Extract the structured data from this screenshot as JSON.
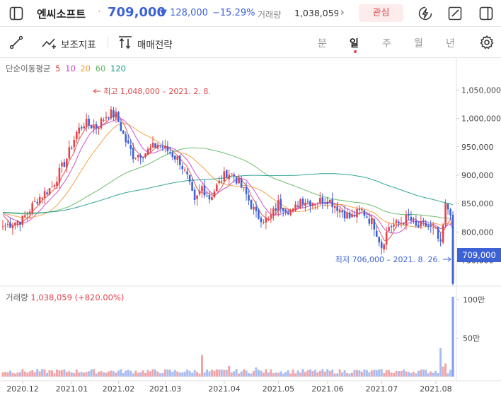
{
  "header": {
    "stock_name": "엔씨소프트",
    "price": "709,000",
    "change": "▼ 128,000",
    "change_pct": "−15.29%",
    "volume_label": "거래량",
    "volume_value": "1,038,059",
    "favorite_label": "관심"
  },
  "toolbar": {
    "indicator_label": "보조지표",
    "trade_strategy_label": "매매전략",
    "periods": [
      "분",
      "일",
      "주",
      "월",
      "년"
    ],
    "active_period": "일"
  },
  "colors": {
    "up": "#e0454a",
    "down": "#3d62d6",
    "ma5": "#e0454a",
    "ma10": "#c940c9",
    "ma20": "#f29a37",
    "ma60": "#5cb85c",
    "ma120": "#1a9a8a"
  },
  "chart_data": {
    "type": "candlestick",
    "ma_legend": {
      "label": "단순이동평균",
      "periods": [
        "5",
        "10",
        "20",
        "60",
        "120"
      ]
    },
    "x_tick_labels": [
      "2020.12",
      "2021.01",
      "2021.02",
      "2021.03",
      "2021.04",
      "2021.05",
      "2021.06",
      "2021.07",
      "2021.08"
    ],
    "x_tick_days": [
      0,
      20,
      39,
      58,
      82,
      104,
      124,
      146,
      168
    ],
    "y_ticks": [
      750000,
      800000,
      850000,
      900000,
      950000,
      1000000,
      1050000
    ],
    "y_tick_labels": [
      "750,000",
      "800,000",
      "850,000",
      "900,000",
      "950,000",
      "1,000,000",
      "1,050,000"
    ],
    "ylim": [
      700000,
      1080000
    ],
    "total_days": 184,
    "close_keys": [
      [
        0,
        810000
      ],
      [
        8,
        822000
      ],
      [
        14,
        858000
      ],
      [
        20,
        880000
      ],
      [
        26,
        930000
      ],
      [
        30,
        975000
      ],
      [
        33,
        992000
      ],
      [
        38,
        985000
      ],
      [
        43,
        1010000
      ],
      [
        46,
        1005000
      ],
      [
        50,
        960000
      ],
      [
        53,
        935000
      ],
      [
        58,
        940000
      ],
      [
        63,
        955000
      ],
      [
        68,
        940000
      ],
      [
        72,
        925000
      ],
      [
        75,
        895000
      ],
      [
        78,
        850000
      ],
      [
        81,
        880000
      ],
      [
        84,
        860000
      ],
      [
        87,
        880000
      ],
      [
        91,
        905000
      ],
      [
        94,
        900000
      ],
      [
        99,
        865000
      ],
      [
        103,
        830000
      ],
      [
        108,
        820000
      ],
      [
        112,
        850000
      ],
      [
        118,
        835000
      ],
      [
        121,
        858000
      ],
      [
        126,
        852000
      ],
      [
        132,
        858000
      ],
      [
        135,
        848000
      ],
      [
        141,
        825000
      ],
      [
        146,
        838000
      ],
      [
        151,
        812000
      ],
      [
        154,
        775000
      ],
      [
        157,
        810000
      ],
      [
        161,
        815000
      ],
      [
        165,
        826000
      ],
      [
        168,
        808000
      ],
      [
        172,
        812000
      ],
      [
        176,
        800000
      ],
      [
        178,
        775000
      ],
      [
        180,
        845000
      ],
      [
        182,
        837000
      ],
      [
        183,
        709000
      ]
    ],
    "high_annotation": {
      "text": "최고 1,048,000 – 2021. 2. 8.",
      "value": 1048000,
      "day": 53
    },
    "low_annotation": {
      "text": "최저 706,000 – 2021. 8. 26.",
      "value": 706000,
      "day": 183
    },
    "current_price_label": "709,000",
    "volume": {
      "legend_label": "거래량",
      "legend_value": "1,038,059 (+820.00%)",
      "y_tick_labels": [
        "50만",
        "100만"
      ],
      "y_ticks": [
        500000,
        1000000
      ],
      "last_day_volume": 1038059,
      "spike_days": [
        [
          81,
          280000
        ],
        [
          92,
          140000
        ],
        [
          103,
          120000
        ],
        [
          150,
          80000
        ],
        [
          178,
          370000
        ],
        [
          179,
          130000
        ],
        [
          180,
          170000
        ],
        [
          183,
          1038059
        ]
      ]
    }
  }
}
